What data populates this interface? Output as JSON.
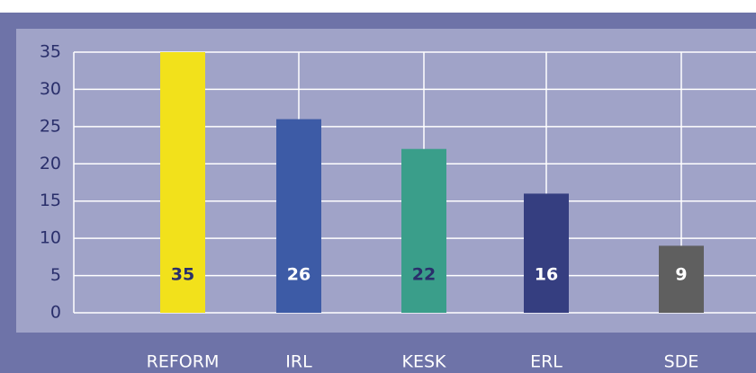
{
  "chart_data": {
    "type": "bar",
    "categories": [
      "REFORM",
      "IRL",
      "KESK",
      "ERL",
      "SDE"
    ],
    "values": [
      35,
      26,
      22,
      16,
      9
    ],
    "colors": [
      "#f2e11b",
      "#3d5ba6",
      "#3a9e8a",
      "#353e80",
      "#5f5f5f"
    ],
    "label_colors": [
      "#2a2f6b",
      "#ffffff",
      "#2a2f6b",
      "#ffffff",
      "#ffffff"
    ],
    "ylim": [
      0,
      35
    ],
    "yticks": [
      0,
      5,
      10,
      15,
      20,
      25,
      30,
      35
    ],
    "grid": true
  }
}
